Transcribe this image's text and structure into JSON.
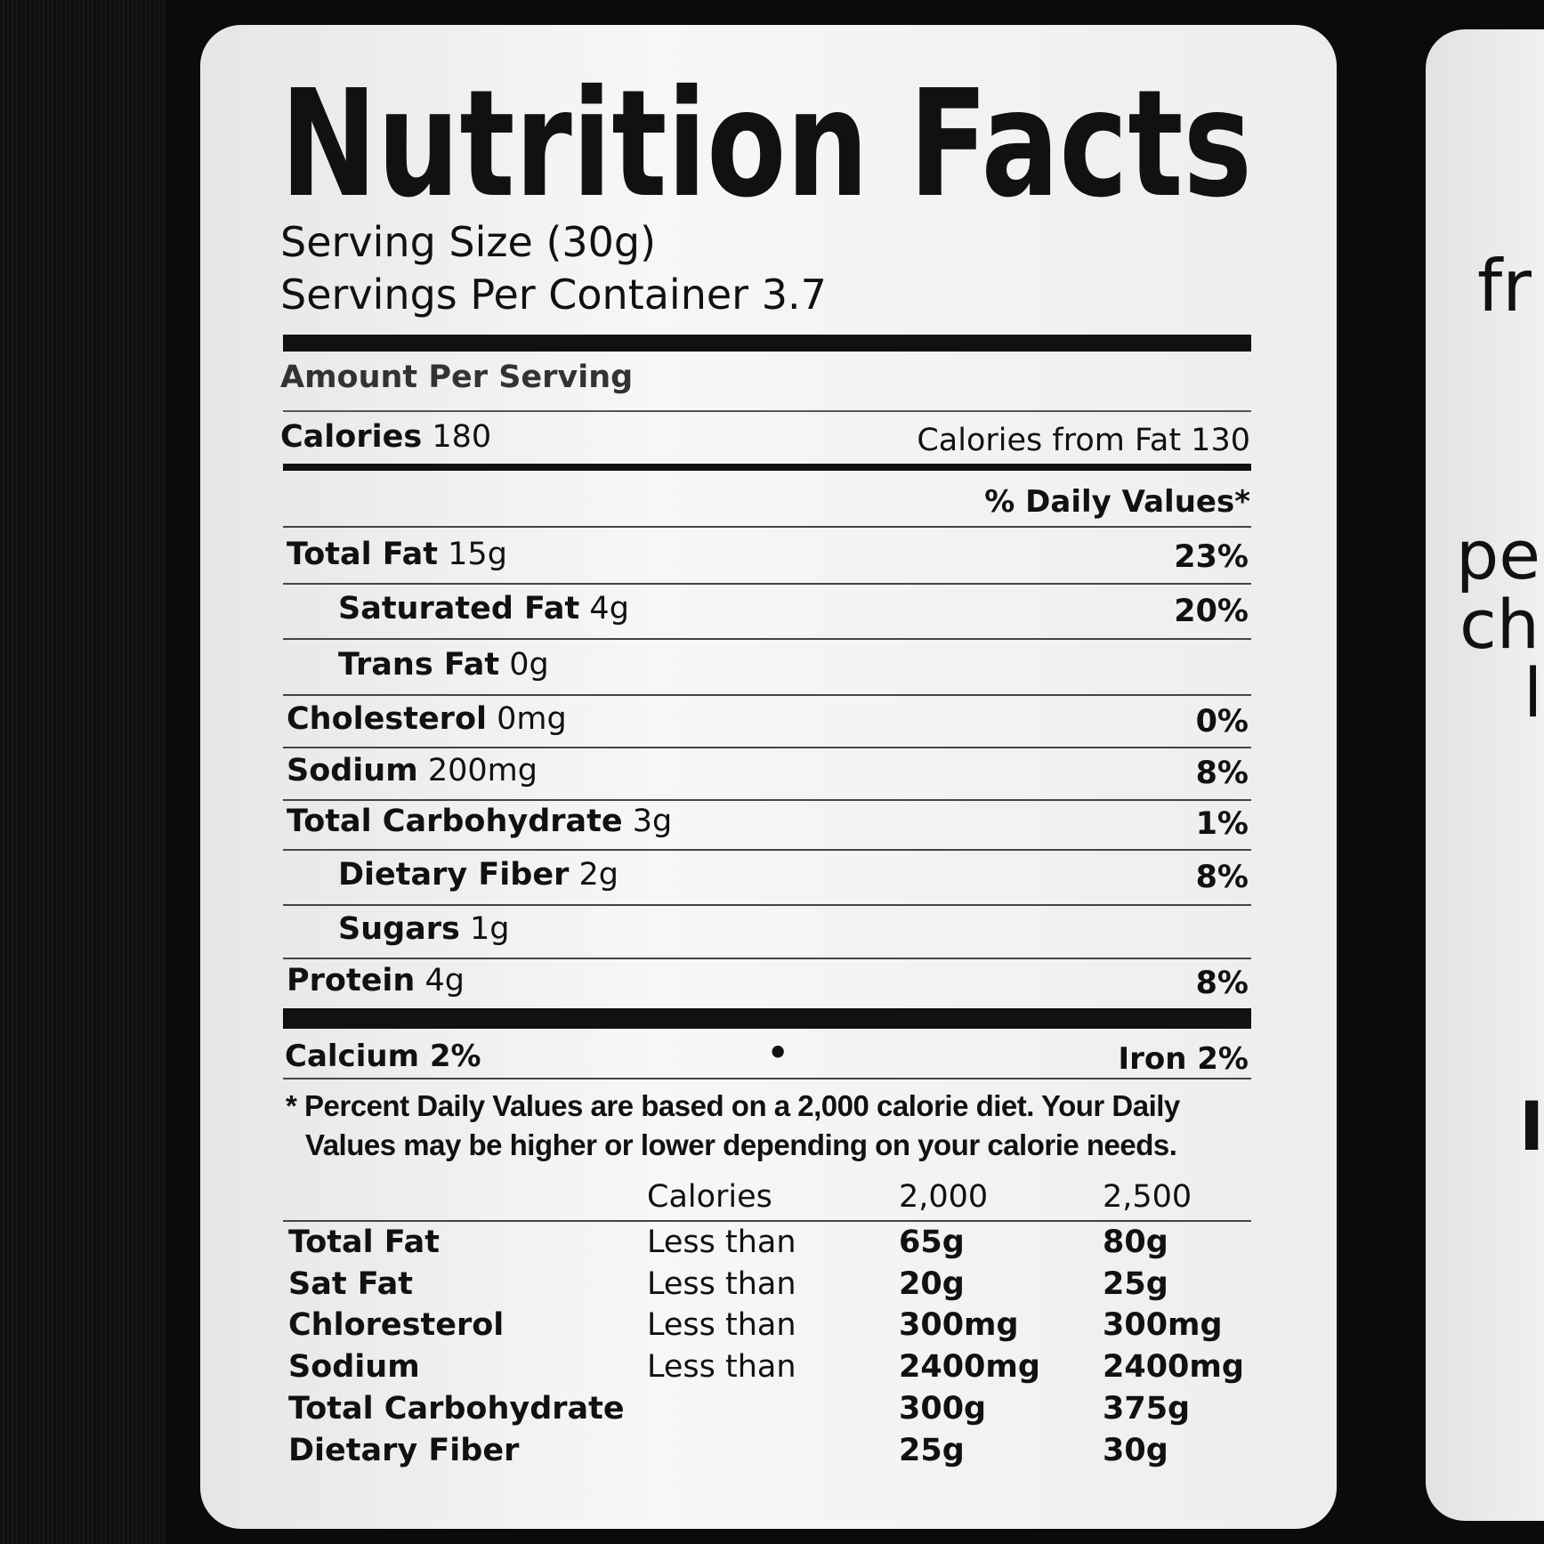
{
  "label": {
    "title": "Nutrition Facts",
    "serving_size": "Serving Size  (30g)",
    "servings_per_container": "Servings Per Container 3.7",
    "amount_per_serving": "Amount Per Serving",
    "calories_label": "Calories",
    "calories_value": "180",
    "calories_from_fat": "Calories from Fat  130",
    "daily_values_header": "% Daily Values*",
    "nutrients": [
      {
        "name": "Total Fat",
        "amount": "15g",
        "dv": "23%",
        "indent": false
      },
      {
        "name": "Saturated Fat",
        "amount": "4g",
        "dv": "20%",
        "indent": true
      },
      {
        "name": "Trans Fat",
        "amount": "0g",
        "dv": "",
        "indent": true
      },
      {
        "name": "Cholesterol",
        "amount": "0mg",
        "dv": "0%",
        "indent": false
      },
      {
        "name": "Sodium",
        "amount": "200mg",
        "dv": "8%",
        "indent": false
      },
      {
        "name": "Total Carbohydrate",
        "amount": "3g",
        "dv": "1%",
        "indent": false
      },
      {
        "name": "Dietary Fiber",
        "amount": "2g",
        "dv": "8%",
        "indent": true
      },
      {
        "name": "Sugars",
        "amount": "1g",
        "dv": "",
        "indent": true
      },
      {
        "name": "Protein",
        "amount": "4g",
        "dv": "8%",
        "indent": false
      }
    ],
    "calcium": "Calcium 2%",
    "bullet": "•",
    "iron": "Iron 2%",
    "footnote_line1": "* Percent Daily Values are based on a 2,000 calorie diet. Your Daily",
    "footnote_line2": "Values may be higher or lower depending on your calorie needs.",
    "table_header": [
      "",
      "Calories",
      "2,000",
      "2,500"
    ],
    "table_rows": [
      [
        "Total Fat",
        "Less than",
        "65g",
        "80g"
      ],
      [
        "Sat Fat",
        "Less than",
        "20g",
        "25g"
      ],
      [
        "Chloresterol",
        "Less than",
        "300mg",
        "300mg"
      ],
      [
        "Sodium",
        "Less than",
        "2400mg",
        "2400mg"
      ],
      [
        "Total Carbohydrate",
        "",
        "300g",
        "375g"
      ],
      [
        "Dietary Fiber",
        "",
        "25g",
        "30g"
      ]
    ]
  },
  "adjacent_panel": {
    "fragments": [
      "fr",
      "pe",
      "ch",
      "l",
      "I"
    ]
  }
}
